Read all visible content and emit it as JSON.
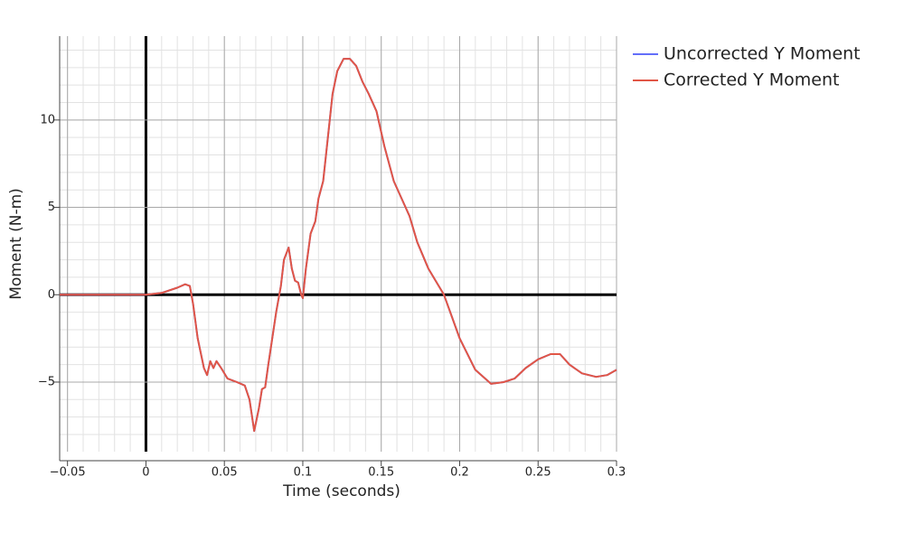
{
  "chart_data": {
    "type": "line",
    "xlabel": "Time (seconds)",
    "ylabel": "Moment (N-m)",
    "x": [
      -0.055,
      -0.04,
      -0.03,
      -0.02,
      -0.01,
      0,
      0.01,
      0.02,
      0.025,
      0.028,
      0.03,
      0.033,
      0.037,
      0.039,
      0.041,
      0.043,
      0.045,
      0.048,
      0.052,
      0.058,
      0.063,
      0.066,
      0.069,
      0.072,
      0.074,
      0.076,
      0.078,
      0.08,
      0.083,
      0.086,
      0.088,
      0.091,
      0.093,
      0.095,
      0.097,
      0.099,
      0.1,
      0.102,
      0.105,
      0.108,
      0.11,
      0.113,
      0.116,
      0.119,
      0.122,
      0.126,
      0.13,
      0.134,
      0.138,
      0.142,
      0.147,
      0.152,
      0.158,
      0.163,
      0.168,
      0.173,
      0.18,
      0.19,
      0.2,
      0.21,
      0.22,
      0.228,
      0.235,
      0.242,
      0.25,
      0.258,
      0.264,
      0.27,
      0.278,
      0.287,
      0.294,
      0.3
    ],
    "series": [
      {
        "name": "Uncorrected Y Moment",
        "color": "#636efa",
        "values": [
          0,
          0,
          0,
          0,
          0,
          0,
          0.1,
          0.4,
          0.6,
          0.5,
          -0.5,
          -2.5,
          -4.2,
          -4.6,
          -3.8,
          -4.2,
          -3.8,
          -4.2,
          -4.8,
          -5,
          -5.2,
          -6,
          -7.8,
          -6.5,
          -5.4,
          -5.3,
          -4,
          -2.8,
          -1,
          0.5,
          2,
          2.7,
          1.5,
          0.8,
          0.7,
          0,
          -0.2,
          1.5,
          3.5,
          4.2,
          5.5,
          6.5,
          9,
          11.5,
          12.8,
          13.5,
          13.5,
          13.1,
          12.2,
          11.5,
          10.5,
          8.5,
          6.5,
          5.5,
          4.5,
          3,
          1.5,
          0,
          -2.5,
          -4.3,
          -5.1,
          -5,
          -4.8,
          -4.2,
          -3.7,
          -3.4,
          -3.4,
          -4,
          -4.5,
          -4.7,
          -4.6,
          -4.3
        ]
      },
      {
        "name": "Corrected Y Moment",
        "color": "#e15646",
        "values": [
          0,
          0,
          0,
          0,
          0,
          0,
          0.1,
          0.4,
          0.6,
          0.5,
          -0.5,
          -2.5,
          -4.2,
          -4.6,
          -3.8,
          -4.2,
          -3.8,
          -4.2,
          -4.8,
          -5,
          -5.2,
          -6,
          -7.8,
          -6.5,
          -5.4,
          -5.3,
          -4,
          -2.8,
          -1,
          0.5,
          2,
          2.7,
          1.5,
          0.8,
          0.7,
          0,
          -0.2,
          1.5,
          3.5,
          4.2,
          5.5,
          6.5,
          9,
          11.5,
          12.8,
          13.5,
          13.5,
          13.1,
          12.2,
          11.5,
          10.5,
          8.5,
          6.5,
          5.5,
          4.5,
          3,
          1.5,
          0,
          -2.5,
          -4.3,
          -5.1,
          -5,
          -4.8,
          -4.2,
          -3.7,
          -3.4,
          -3.4,
          -4,
          -4.5,
          -4.7,
          -4.6,
          -4.3
        ]
      }
    ],
    "xlim": [
      -0.055,
      0.3
    ],
    "ylim": [
      -9.5,
      14.8
    ],
    "xticks": [
      {
        "value": -0.05,
        "label": "−0.05"
      },
      0,
      0.05,
      0.1,
      0.15,
      0.2,
      0.25,
      0.3
    ],
    "yticks": [
      {
        "value": -5,
        "label": "−5"
      },
      0,
      5,
      10
    ],
    "grid": true,
    "legend": "outside-top-right"
  }
}
